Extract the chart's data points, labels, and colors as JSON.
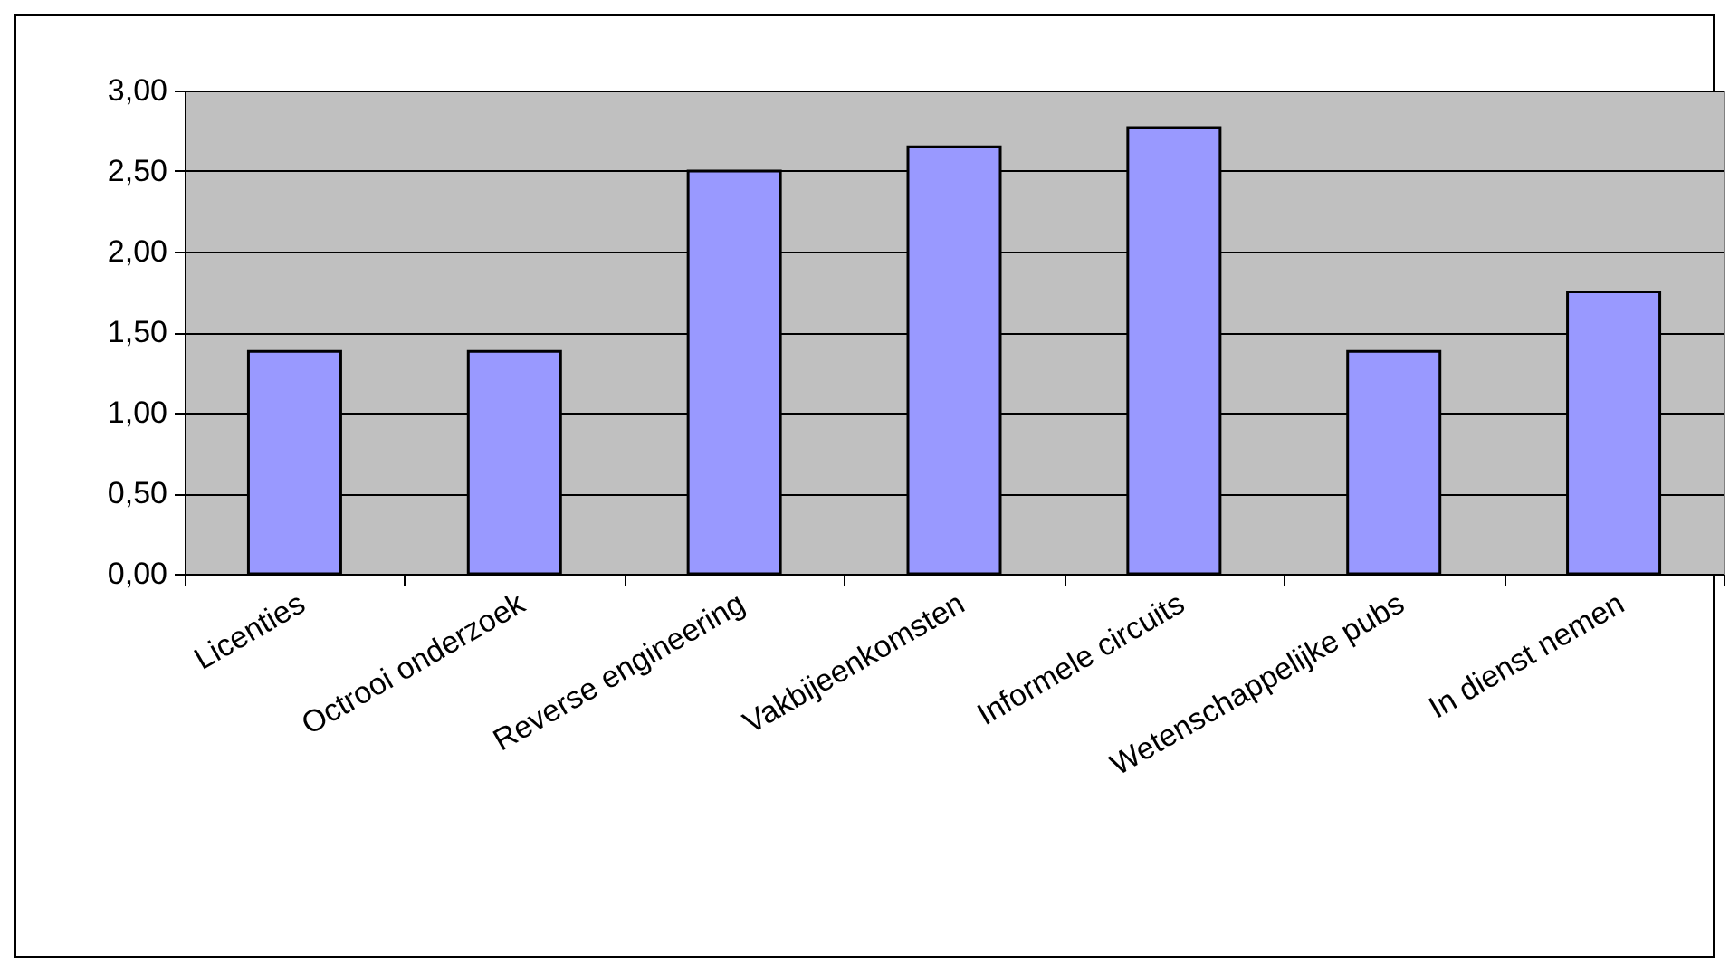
{
  "chart_data": {
    "type": "bar",
    "categories": [
      "Licenties",
      "Octrooi onderzoek",
      "Reverse engineering",
      "Vakbijeenkomsten",
      "Informele circuits",
      "Wetenschappelijke pubs",
      "In dienst nemen"
    ],
    "values": [
      1.38,
      1.38,
      2.5,
      2.65,
      2.77,
      1.38,
      1.75
    ],
    "color": "#9999ff",
    "ylim": [
      0,
      3
    ],
    "yticks": [
      {
        "value": 0,
        "label": "0,00"
      },
      {
        "value": 0.5,
        "label": "0,50"
      },
      {
        "value": 1,
        "label": "1,00"
      },
      {
        "value": 1.5,
        "label": "1,50"
      },
      {
        "value": 2,
        "label": "2,00"
      },
      {
        "value": 2.5,
        "label": "2,50"
      },
      {
        "value": 3,
        "label": "3,00"
      }
    ],
    "grid": "y"
  }
}
